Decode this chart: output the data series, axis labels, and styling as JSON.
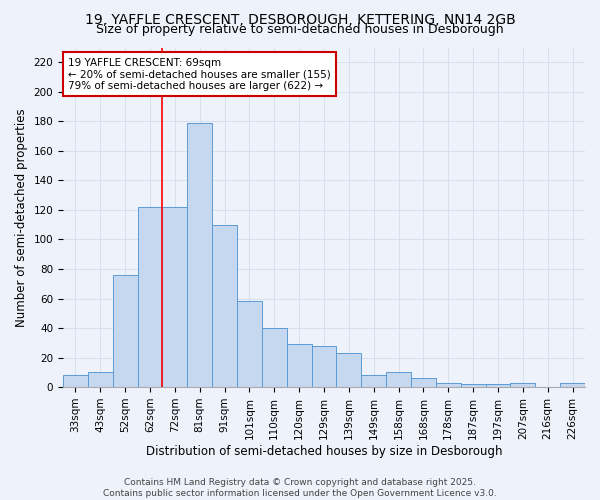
{
  "title1": "19, YAFFLE CRESCENT, DESBOROUGH, KETTERING, NN14 2GB",
  "title2": "Size of property relative to semi-detached houses in Desborough",
  "xlabel": "Distribution of semi-detached houses by size in Desborough",
  "ylabel": "Number of semi-detached properties",
  "categories": [
    "33sqm",
    "43sqm",
    "52sqm",
    "62sqm",
    "72sqm",
    "81sqm",
    "91sqm",
    "101sqm",
    "110sqm",
    "120sqm",
    "129sqm",
    "139sqm",
    "149sqm",
    "158sqm",
    "168sqm",
    "178sqm",
    "187sqm",
    "197sqm",
    "207sqm",
    "216sqm",
    "226sqm"
  ],
  "values": [
    8,
    10,
    76,
    122,
    122,
    179,
    110,
    58,
    40,
    29,
    28,
    23,
    8,
    10,
    6,
    3,
    2,
    2,
    3,
    0,
    3
  ],
  "bar_color": "#c5d8f0",
  "bar_edge_color": "#5b9bd5",
  "red_line_category_index": 4,
  "annotation_line1": "19 YAFFLE CRESCENT: 69sqm",
  "annotation_line2": "← 20% of semi-detached houses are smaller (155)",
  "annotation_line3": "79% of semi-detached houses are larger (622) →",
  "annotation_box_color": "#ffffff",
  "annotation_box_edge_color": "#cc0000",
  "ylim": [
    0,
    230
  ],
  "yticks": [
    0,
    20,
    40,
    60,
    80,
    100,
    120,
    140,
    160,
    180,
    200,
    220
  ],
  "background_color": "#eef2fb",
  "grid_color": "#d8e0f0",
  "footer_text": "Contains HM Land Registry data © Crown copyright and database right 2025.\nContains public sector information licensed under the Open Government Licence v3.0.",
  "title_fontsize": 10,
  "subtitle_fontsize": 9,
  "axis_label_fontsize": 8.5,
  "tick_fontsize": 7.5,
  "footer_fontsize": 6.5,
  "annotation_fontsize": 7.5
}
